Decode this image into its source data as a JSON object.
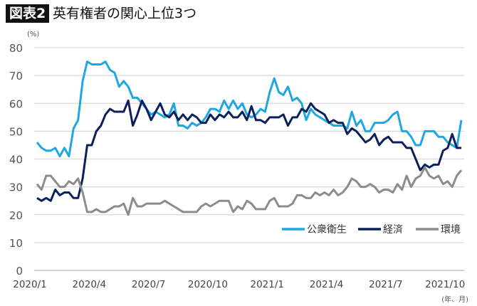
{
  "header": {
    "badge": "図表2",
    "title": "英有権者の関心上位3つ"
  },
  "chart_data": {
    "type": "line",
    "ylabel": "(%)",
    "xlabel": "(年、月)",
    "ylim": [
      0,
      80
    ],
    "yticks": [
      0,
      10,
      20,
      30,
      40,
      50,
      60,
      70,
      80
    ],
    "x_range": [
      "2020/1",
      "2021/10"
    ],
    "xticks": [
      {
        "label": "2020/1",
        "week": 0
      },
      {
        "label": "2020/4",
        "week": 13
      },
      {
        "label": "2020/7",
        "week": 26
      },
      {
        "label": "2020/10",
        "week": 39
      },
      {
        "label": "2021/1",
        "week": 52
      },
      {
        "label": "2021/4",
        "week": 65
      },
      {
        "label": "2021/7",
        "week": 78
      },
      {
        "label": "2021/10",
        "week": 91
      }
    ],
    "grid": true,
    "legend_placement": "bottom-right",
    "series": [
      {
        "name": "公衆衛生",
        "color": "#1ea7e1",
        "values": [
          46,
          44,
          43,
          43,
          44,
          41,
          44,
          41,
          51,
          54,
          68,
          75,
          74,
          74,
          74,
          75,
          72,
          71,
          66,
          68,
          66,
          62,
          62,
          60,
          58,
          56,
          57,
          56,
          55,
          56,
          60,
          52,
          52,
          51,
          53,
          52,
          53,
          55,
          58,
          58,
          57,
          61,
          58,
          61,
          58,
          60,
          56,
          55,
          56,
          58,
          57,
          64,
          69,
          64,
          63,
          66,
          61,
          62,
          60,
          54,
          58,
          56,
          55,
          54,
          53,
          52,
          52,
          52,
          51,
          57,
          52,
          54,
          50,
          50,
          53,
          53,
          53,
          54,
          56,
          57,
          50,
          50,
          48,
          45,
          45,
          50,
          50,
          50,
          48,
          48,
          46,
          45,
          44,
          54
        ]
      },
      {
        "name": "経済",
        "color": "#0b1f5c",
        "values": [
          26,
          25,
          26,
          25,
          29,
          27,
          28,
          28,
          26,
          26,
          33,
          45,
          45,
          50,
          52,
          56,
          58,
          57,
          57,
          57,
          61,
          52,
          56,
          61,
          58,
          54,
          57,
          60,
          56,
          55,
          57,
          54,
          56,
          54,
          56,
          55,
          53,
          53,
          56,
          54,
          56,
          55,
          57,
          55,
          55,
          57,
          54,
          59,
          54,
          54,
          53,
          55,
          55,
          55,
          56,
          52,
          55,
          55,
          58,
          57,
          60,
          58,
          57,
          56,
          53,
          54,
          53,
          53,
          49,
          51,
          50,
          48,
          46,
          47,
          49,
          45,
          47,
          48,
          46,
          46,
          46,
          44,
          44,
          40,
          36,
          38,
          37,
          38,
          38,
          43,
          44,
          49,
          44,
          44
        ]
      },
      {
        "name": "環境",
        "color": "#8c8c8c",
        "values": [
          31,
          29,
          34,
          34,
          32,
          30,
          30,
          32,
          31,
          33,
          28,
          21,
          21,
          22,
          21,
          21,
          22,
          23,
          23,
          24,
          20,
          26,
          23,
          23,
          24,
          24,
          24,
          24,
          25,
          24,
          23,
          22,
          21,
          21,
          21,
          21,
          23,
          24,
          23,
          24,
          25,
          25,
          25,
          21,
          23,
          22,
          25,
          24,
          22,
          22,
          22,
          25,
          26,
          23,
          23,
          23,
          24,
          27,
          27,
          26,
          26,
          28,
          27,
          28,
          27,
          29,
          27,
          28,
          30,
          33,
          32,
          30,
          30,
          31,
          30,
          28,
          29,
          29,
          28,
          31,
          29,
          34,
          30,
          33,
          34,
          37,
          34,
          33,
          34,
          31,
          32,
          30,
          34,
          36
        ]
      }
    ]
  }
}
